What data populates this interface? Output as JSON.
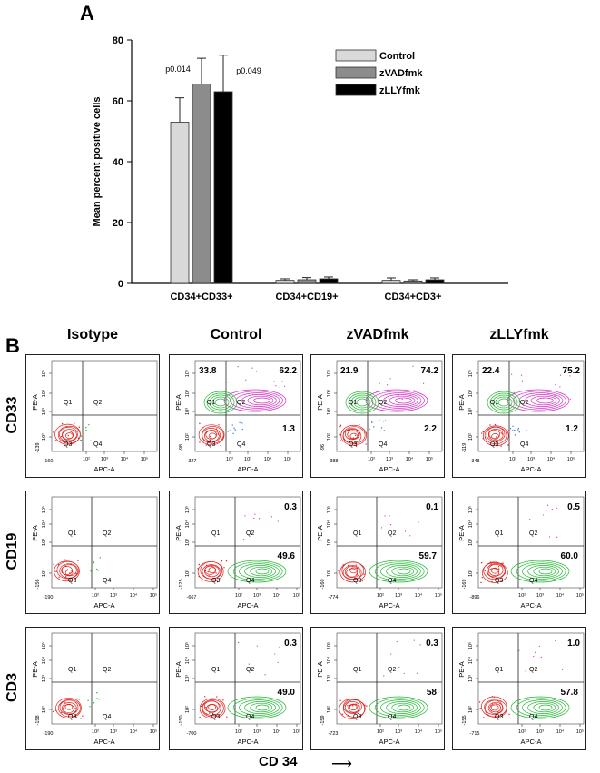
{
  "panel_a_label": "A",
  "panel_b_label": "B",
  "chart_data": {
    "type": "bar",
    "title": "",
    "xlabel": "",
    "ylabel": "Mean percent positive cells",
    "ylim": [
      0,
      80
    ],
    "yticks": [
      0,
      20,
      40,
      60,
      80
    ],
    "grid": false,
    "legend_position": "top-right",
    "categories": [
      "CD34+CD33+",
      "CD34+CD19+",
      "CD34+CD3+"
    ],
    "series": [
      {
        "name": "Control",
        "color": "#d9d9d9",
        "values": [
          53,
          1.0,
          1.0
        ],
        "errors": [
          8,
          0.5,
          0.8
        ]
      },
      {
        "name": "zVADfmk",
        "color": "#8c8c8c",
        "values": [
          65.5,
          1.2,
          0.8
        ],
        "errors": [
          8.5,
          0.7,
          0.4
        ]
      },
      {
        "name": "zLLYfmk",
        "color": "#000000",
        "values": [
          63,
          1.5,
          1.2
        ],
        "errors": [
          12,
          0.6,
          0.6
        ]
      }
    ],
    "annotations": [
      {
        "text": "p0.014",
        "series": 1,
        "category": 0
      },
      {
        "text": "p0.049",
        "series": 2,
        "category": 0
      }
    ]
  },
  "flow": {
    "columns": [
      "Isotype",
      "Control",
      "zVADfmk",
      "zLLYfmk"
    ],
    "rows": [
      "CD33",
      "CD19",
      "CD3"
    ],
    "x_axis_title": "CD 34",
    "x_axis_arrow": "⟶",
    "axis_x_name": "APC-A",
    "axis_y_name": "PE-A",
    "quadrants": [
      "Q1",
      "Q2",
      "Q3",
      "Q4"
    ],
    "tick_labels": [
      "10²",
      "10³",
      "10⁴",
      "10⁵"
    ],
    "plots": [
      [
        {
          "q1": "",
          "q2": "",
          "q4": "",
          "xmin": "-160",
          "ymin": "-139",
          "green": false
        },
        {
          "q1": "33.8",
          "q2": "62.2",
          "q4": "1.3",
          "xmin": "-327",
          "ymin": "-98",
          "green": true
        },
        {
          "q1": "21.9",
          "q2": "74.2",
          "q4": "2.2",
          "xmin": "-388",
          "ymin": "-96",
          "green": true
        },
        {
          "q1": "22.4",
          "q2": "75.2",
          "q4": "1.2",
          "xmin": "-348",
          "ymin": "-119",
          "green": true
        }
      ],
      [
        {
          "q1": "",
          "q2": "",
          "q4": "",
          "xmin": "-190",
          "ymin": "-156",
          "green": false
        },
        {
          "q1": "",
          "q2": "0.3",
          "q4": "49.6",
          "xmin": "-667",
          "ymin": "-125",
          "green": true
        },
        {
          "q1": "",
          "q2": "0.1",
          "q4": "59.7",
          "xmin": "-774",
          "ymin": "-160",
          "green": true
        },
        {
          "q1": "",
          "q2": "0.5",
          "q4": "60.0",
          "xmin": "-896",
          "ymin": "-169",
          "green": true
        }
      ],
      [
        {
          "q1": "",
          "q2": "",
          "q4": "",
          "xmin": "-190",
          "ymin": "-158",
          "green": false
        },
        {
          "q1": "",
          "q2": "0.3",
          "q4": "49.0",
          "xmin": "-700",
          "ymin": "-150",
          "green": true
        },
        {
          "q1": "",
          "q2": "0.3",
          "q4": "58",
          "xmin": "-723",
          "ymin": "-159",
          "green": true
        },
        {
          "q1": "",
          "q2": "1.0",
          "q4": "57.8",
          "xmin": "-715",
          "ymin": "-155",
          "green": true
        }
      ]
    ]
  }
}
